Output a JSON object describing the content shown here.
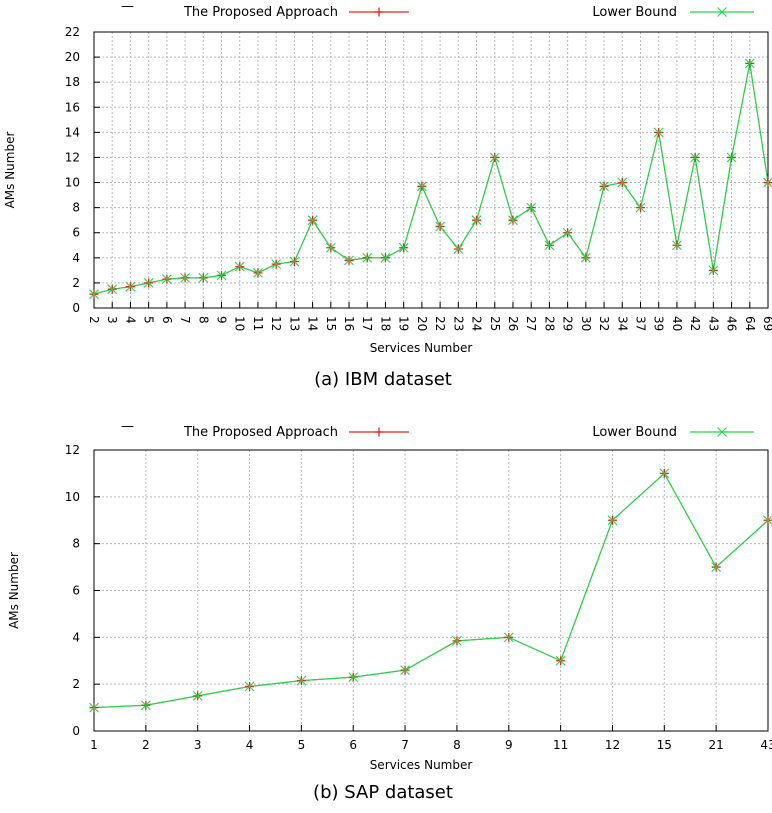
{
  "chart_data": [
    {
      "type": "line",
      "caption": "(a) IBM dataset",
      "xlabel": "Services Number",
      "ylabel": "AMs Number",
      "ylim": [
        0,
        22
      ],
      "yticks": [
        0,
        2,
        4,
        6,
        8,
        10,
        12,
        14,
        16,
        18,
        20,
        22
      ],
      "grid": true,
      "legend_position": "top",
      "legend_marker": "—",
      "categories": [
        "2",
        "3",
        "4",
        "5",
        "6",
        "7",
        "8",
        "9",
        "10",
        "11",
        "12",
        "13",
        "14",
        "15",
        "16",
        "17",
        "18",
        "19",
        "20",
        "22",
        "23",
        "24",
        "25",
        "26",
        "27",
        "28",
        "29",
        "30",
        "32",
        "34",
        "37",
        "39",
        "40",
        "42",
        "43",
        "46",
        "64",
        "69"
      ],
      "series": [
        {
          "name": "The Proposed Approach",
          "color": "#e8231d",
          "marker": "plus",
          "values": [
            1.1,
            1.5,
            1.7,
            2,
            2.3,
            2.4,
            2.4,
            2.6,
            3.3,
            2.8,
            3.5,
            3.7,
            7,
            4.8,
            3.8,
            4,
            4,
            4.8,
            9.7,
            6.5,
            4.7,
            7,
            12,
            7,
            8,
            5,
            6,
            4,
            9.7,
            10,
            8,
            14,
            5,
            12,
            3,
            12,
            19.5,
            10
          ]
        },
        {
          "name": "Lower Bound",
          "color": "#22d64b",
          "marker": "cross",
          "values": [
            1.1,
            1.5,
            1.7,
            2,
            2.3,
            2.4,
            2.4,
            2.6,
            3.3,
            2.8,
            3.5,
            3.7,
            7,
            4.8,
            3.8,
            4,
            4,
            4.8,
            9.7,
            6.5,
            4.7,
            7,
            12,
            7,
            8,
            5,
            6,
            4,
            9.7,
            10,
            8,
            14,
            5,
            12,
            3,
            12,
            19.5,
            10
          ]
        }
      ]
    },
    {
      "type": "line",
      "caption": "(b) SAP dataset",
      "xlabel": "Services Number",
      "ylabel": "AMs Number",
      "ylim": [
        0,
        12
      ],
      "yticks": [
        0,
        2,
        4,
        6,
        8,
        10,
        12
      ],
      "grid": true,
      "legend_position": "top",
      "legend_marker": "—",
      "categories": [
        "1",
        "2",
        "3",
        "4",
        "5",
        "6",
        "7",
        "8",
        "9",
        "11",
        "12",
        "15",
        "21",
        "43"
      ],
      "series": [
        {
          "name": "The Proposed Approach",
          "color": "#e8231d",
          "marker": "plus",
          "values": [
            1,
            1.1,
            1.5,
            1.9,
            2.15,
            2.3,
            2.6,
            3.85,
            4,
            3,
            9,
            11,
            7,
            9
          ]
        },
        {
          "name": "Lower Bound",
          "color": "#22d64b",
          "marker": "cross",
          "values": [
            1,
            1.1,
            1.5,
            1.9,
            2.15,
            2.3,
            2.6,
            3.85,
            4,
            3,
            9,
            11,
            7,
            9
          ]
        }
      ]
    }
  ]
}
